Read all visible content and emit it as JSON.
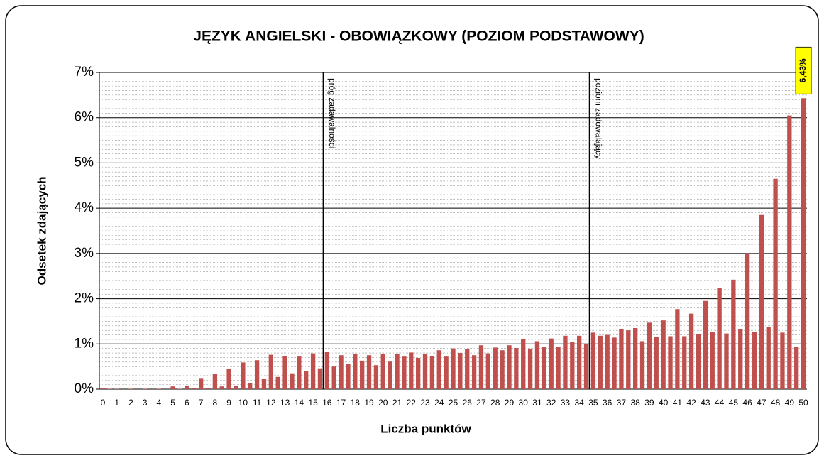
{
  "chart_data": {
    "type": "bar",
    "title": "JĘZYK ANGIELSKI - OBOWIĄZKOWY (POZIOM PODSTAWOWY)",
    "x_label": "Liczba punktów",
    "y_label": "Odsetek zdających",
    "categories": [
      "0",
      null,
      "1",
      null,
      "2",
      null,
      "3",
      null,
      "4",
      null,
      "5",
      null,
      "6",
      null,
      "7",
      null,
      "8",
      null,
      "9",
      null,
      "10",
      null,
      "11",
      null,
      "12",
      null,
      "13",
      null,
      "14",
      null,
      "15",
      null,
      "16",
      null,
      "17",
      null,
      "18",
      null,
      "19",
      null,
      "20",
      null,
      "21",
      null,
      "22",
      null,
      "23",
      null,
      "24",
      null,
      "25",
      null,
      "26",
      null,
      "27",
      null,
      "28",
      null,
      "29",
      null,
      "30",
      null,
      "31",
      null,
      "32",
      null,
      "33",
      null,
      "34",
      null,
      "35",
      null,
      "36",
      null,
      "37",
      null,
      "38",
      null,
      "39",
      null,
      "40",
      null,
      "41",
      null,
      "42",
      null,
      "43",
      null,
      "44",
      null,
      "45",
      null,
      "46",
      null,
      "47",
      null,
      "48",
      null,
      "49",
      null,
      "50"
    ],
    "values": [
      0.03,
      0.01,
      0.01,
      0,
      0.01,
      0,
      0.01,
      0,
      0.01,
      0,
      0.06,
      0.01,
      0.08,
      0.02,
      0.23,
      0.03,
      0.34,
      0.06,
      0.44,
      0.08,
      0.59,
      0.13,
      0.64,
      0.22,
      0.76,
      0.27,
      0.73,
      0.35,
      0.72,
      0.4,
      0.79,
      0.46,
      0.82,
      0.5,
      0.75,
      0.55,
      0.78,
      0.63,
      0.75,
      0.53,
      0.78,
      0.61,
      0.77,
      0.72,
      0.81,
      0.69,
      0.77,
      0.73,
      0.86,
      0.72,
      0.9,
      0.8,
      0.89,
      0.75,
      0.97,
      0.79,
      0.92,
      0.86,
      0.97,
      0.91,
      1.1,
      0.89,
      1.06,
      0.93,
      1.12,
      0.93,
      1.18,
      1.05,
      1.18,
      1.0,
      1.25,
      1.18,
      1.2,
      1.14,
      1.32,
      1.3,
      1.35,
      1.06,
      1.47,
      1.15,
      1.52,
      1.17,
      1.77,
      1.17,
      1.67,
      1.22,
      1.95,
      1.26,
      2.23,
      1.23,
      2.42,
      1.33,
      3.0,
      1.27,
      3.85,
      1.37,
      4.65,
      1.25,
      6.05,
      0.93,
      6.43
    ],
    "value_labels": [
      null,
      null,
      null,
      null,
      null,
      null,
      null,
      null,
      null,
      null,
      null,
      null,
      null,
      null,
      null,
      null,
      null,
      null,
      null,
      null,
      null,
      null,
      null,
      null,
      null,
      null,
      null,
      null,
      null,
      null,
      null,
      null,
      null,
      null,
      null,
      null,
      null,
      null,
      null,
      null,
      null,
      null,
      null,
      null,
      null,
      null,
      null,
      null,
      null,
      null,
      null,
      null,
      null,
      null,
      null,
      null,
      null,
      null,
      null,
      null,
      null,
      null,
      null,
      null,
      null,
      null,
      null,
      null,
      null,
      null,
      null,
      null,
      null,
      null,
      null,
      null,
      null,
      null,
      null,
      null,
      null,
      null,
      null,
      null,
      null,
      null,
      null,
      null,
      null,
      null,
      null,
      null,
      null,
      null,
      null,
      null,
      null,
      null,
      null,
      null,
      "6,43%"
    ],
    "color": "#c0504d",
    "ylim": [
      0,
      7
    ],
    "yticks": [
      {
        "value": 0,
        "label": "0%"
      },
      {
        "value": 1,
        "label": "1%"
      },
      {
        "value": 2,
        "label": "2%"
      },
      {
        "value": 3,
        "label": "3%"
      },
      {
        "value": 4,
        "label": "4%"
      },
      {
        "value": 5,
        "label": "5%"
      },
      {
        "value": 6,
        "label": "6%"
      },
      {
        "value": 7,
        "label": "7%"
      }
    ],
    "grid": true,
    "reference_lines": [
      {
        "category": "16",
        "label": "próg zadawalności"
      },
      {
        "category": "35",
        "label": "poziom zadowalający"
      }
    ]
  }
}
